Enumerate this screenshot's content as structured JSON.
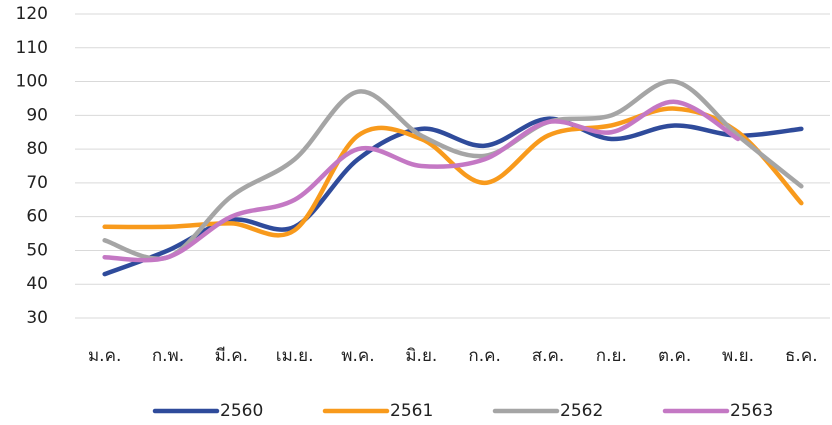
{
  "chart_data": {
    "type": "line",
    "categories": [
      "ม.ค.",
      "ก.พ.",
      "มี.ค.",
      "เม.ย.",
      "พ.ค.",
      "มิ.ย.",
      "ก.ค.",
      "ส.ค.",
      "ก.ย.",
      "ต.ค.",
      "พ.ย.",
      "ธ.ค."
    ],
    "series": [
      {
        "name": "2560",
        "color": "#2f4b9b",
        "values": [
          43,
          50,
          59,
          57,
          77,
          86,
          81,
          89,
          83,
          87,
          84,
          86
        ]
      },
      {
        "name": "2561",
        "color": "#f89a1c",
        "values": [
          57,
          57,
          58,
          56,
          84,
          83,
          70,
          84,
          87,
          92,
          85,
          64
        ]
      },
      {
        "name": "2562",
        "color": "#a5a5a5",
        "values": [
          53,
          48,
          66,
          77,
          97,
          84,
          78,
          88,
          90,
          100,
          84,
          69
        ]
      },
      {
        "name": "2563",
        "color": "#c478c4",
        "values": [
          48,
          48,
          60,
          65,
          80,
          75,
          77,
          88,
          85,
          94,
          83,
          null
        ]
      }
    ],
    "ylim": [
      30,
      120
    ],
    "yticks": [
      30,
      40,
      50,
      60,
      70,
      80,
      90,
      100,
      110,
      120
    ],
    "grid": true,
    "legend": "bottom"
  }
}
